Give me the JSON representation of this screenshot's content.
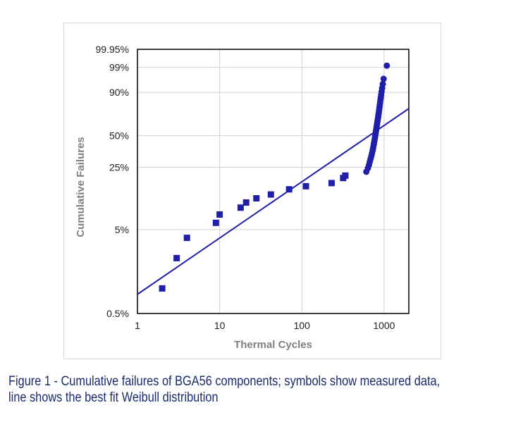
{
  "chart_data": {
    "type": "scatter",
    "xlabel": "Thermal Cycles",
    "ylabel": "Cumulative Failures",
    "x_scale": "log",
    "y_scale": "weibull",
    "xlim": [
      1,
      2000
    ],
    "ylim": [
      0.5,
      99.95
    ],
    "x_ticks": [
      {
        "value": 1,
        "label": "1"
      },
      {
        "value": 10,
        "label": "10"
      },
      {
        "value": 100,
        "label": "100"
      },
      {
        "value": 1000,
        "label": "1000"
      }
    ],
    "y_ticks": [
      {
        "value": 0.5,
        "label": "0.5%"
      },
      {
        "value": 5,
        "label": "5%"
      },
      {
        "value": 25,
        "label": "25%"
      },
      {
        "value": 50,
        "label": "50%"
      },
      {
        "value": 90,
        "label": "90%"
      },
      {
        "value": 99,
        "label": "99%"
      },
      {
        "value": 99.95,
        "label": "99.95%"
      }
    ],
    "grid": true,
    "series": [
      {
        "kind": "points",
        "color": "#1f1fa8",
        "points": [
          {
            "x": 2,
            "y": 1.0,
            "shape": "square"
          },
          {
            "x": 3,
            "y": 2.3,
            "shape": "square"
          },
          {
            "x": 4,
            "y": 4.0,
            "shape": "square"
          },
          {
            "x": 9,
            "y": 6.0,
            "shape": "square"
          },
          {
            "x": 10,
            "y": 7.5,
            "shape": "square"
          },
          {
            "x": 18,
            "y": 9.0,
            "shape": "square"
          },
          {
            "x": 21,
            "y": 10.3,
            "shape": "square"
          },
          {
            "x": 28,
            "y": 11.5,
            "shape": "square"
          },
          {
            "x": 42,
            "y": 12.7,
            "shape": "square"
          },
          {
            "x": 70,
            "y": 14.5,
            "shape": "square"
          },
          {
            "x": 112,
            "y": 15.7,
            "shape": "square"
          },
          {
            "x": 230,
            "y": 17.0,
            "shape": "square"
          },
          {
            "x": 318,
            "y": 19.3,
            "shape": "square"
          },
          {
            "x": 338,
            "y": 20.5,
            "shape": "square"
          },
          {
            "x": 608,
            "y": 22.5,
            "shape": "circle"
          },
          {
            "x": 635,
            "y": 24.5,
            "shape": "circle"
          },
          {
            "x": 655,
            "y": 26.5,
            "shape": "circle"
          },
          {
            "x": 670,
            "y": 28.5,
            "shape": "circle"
          },
          {
            "x": 685,
            "y": 30.5,
            "shape": "circle"
          },
          {
            "x": 700,
            "y": 32.5,
            "shape": "circle"
          },
          {
            "x": 712,
            "y": 34.5,
            "shape": "circle"
          },
          {
            "x": 724,
            "y": 36.5,
            "shape": "circle"
          },
          {
            "x": 734,
            "y": 38.5,
            "shape": "circle"
          },
          {
            "x": 744,
            "y": 40.5,
            "shape": "circle"
          },
          {
            "x": 752,
            "y": 42.5,
            "shape": "circle"
          },
          {
            "x": 760,
            "y": 44.5,
            "shape": "circle"
          },
          {
            "x": 768,
            "y": 46.5,
            "shape": "circle"
          },
          {
            "x": 776,
            "y": 48.5,
            "shape": "circle"
          },
          {
            "x": 783,
            "y": 50.5,
            "shape": "circle"
          },
          {
            "x": 790,
            "y": 52.5,
            "shape": "circle"
          },
          {
            "x": 797,
            "y": 54.5,
            "shape": "circle"
          },
          {
            "x": 804,
            "y": 56.5,
            "shape": "circle"
          },
          {
            "x": 811,
            "y": 58.5,
            "shape": "circle"
          },
          {
            "x": 818,
            "y": 60.5,
            "shape": "circle"
          },
          {
            "x": 825,
            "y": 62.5,
            "shape": "circle"
          },
          {
            "x": 832,
            "y": 64.5,
            "shape": "circle"
          },
          {
            "x": 839,
            "y": 66.5,
            "shape": "circle"
          },
          {
            "x": 846,
            "y": 68.5,
            "shape": "circle"
          },
          {
            "x": 853,
            "y": 70.5,
            "shape": "circle"
          },
          {
            "x": 860,
            "y": 72.5,
            "shape": "circle"
          },
          {
            "x": 867,
            "y": 74.5,
            "shape": "circle"
          },
          {
            "x": 874,
            "y": 76.5,
            "shape": "circle"
          },
          {
            "x": 881,
            "y": 78.5,
            "shape": "circle"
          },
          {
            "x": 888,
            "y": 80.5,
            "shape": "circle"
          },
          {
            "x": 895,
            "y": 82.5,
            "shape": "circle"
          },
          {
            "x": 903,
            "y": 84.5,
            "shape": "circle"
          },
          {
            "x": 912,
            "y": 86.5,
            "shape": "circle"
          },
          {
            "x": 922,
            "y": 88.5,
            "shape": "circle"
          },
          {
            "x": 934,
            "y": 90.5,
            "shape": "circle"
          },
          {
            "x": 948,
            "y": 92.5,
            "shape": "circle"
          },
          {
            "x": 965,
            "y": 94.5,
            "shape": "circle"
          },
          {
            "x": 988,
            "y": 96.5,
            "shape": "circle"
          },
          {
            "x": 1080,
            "y": 99.2,
            "shape": "circle"
          }
        ]
      },
      {
        "kind": "line",
        "color": "#1f1fa8",
        "points": [
          {
            "x": 1,
            "y": 0.85
          },
          {
            "x": 2000,
            "y": 77
          }
        ]
      }
    ]
  },
  "caption": "Figure 1 - Cumulative failures of BGA56 components; symbols show measured data, line shows the best fit Weibull distribution"
}
